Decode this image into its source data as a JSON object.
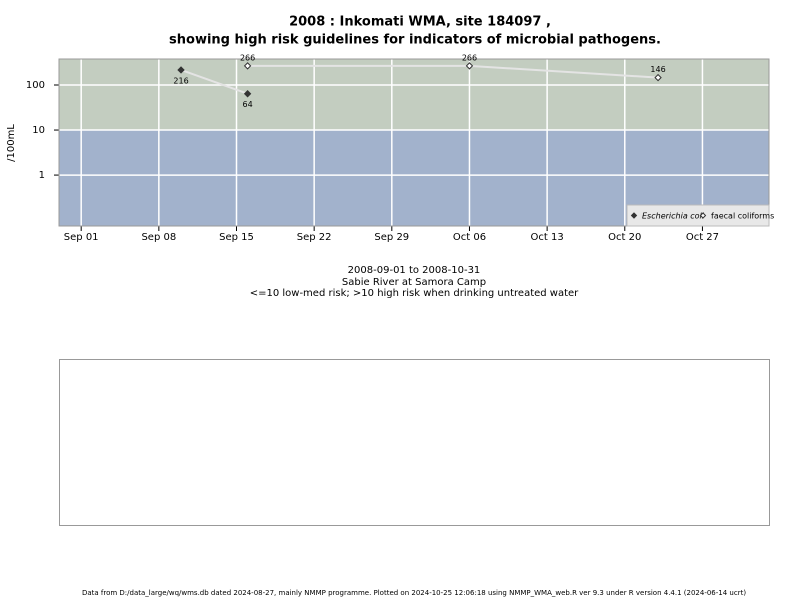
{
  "chart_data": {
    "type": "line",
    "title": "2008 : Inkomati WMA, site 184097 ,",
    "subtitle": "showing high risk guidelines for indicators of microbial pathogens.",
    "y_label": "/100mL",
    "x_caption": [
      "2008-09-01 to 2008-10-31",
      "Sabie River at Samora Camp",
      "<=10 low-med risk; >10 high risk when drinking untreated water"
    ],
    "footer": "Data from D:/data_large/wq/wms.db dated 2024-08-27, mainly NMMP programme. Plotted on 2024-10-25 12:06:18 using NMMP_WMA_web.R ver 9.3 under R version 4.4.1 (2024-06-14 ucrt)",
    "log_scale": true,
    "grid": true,
    "threshold": 10,
    "legend_position": "bottom-right",
    "xlim": [
      "2008-08-30",
      "2008-11-02"
    ],
    "xticks": [
      {
        "value": "2008-09-01",
        "label": "Sep 01"
      },
      {
        "value": "2008-09-08",
        "label": "Sep 08"
      },
      {
        "value": "2008-09-15",
        "label": "Sep 15"
      },
      {
        "value": "2008-09-22",
        "label": "Sep 22"
      },
      {
        "value": "2008-09-29",
        "label": "Sep 29"
      },
      {
        "value": "2008-10-06",
        "label": "Oct 06"
      },
      {
        "value": "2008-10-13",
        "label": "Oct 13"
      },
      {
        "value": "2008-10-20",
        "label": "Oct 20"
      },
      {
        "value": "2008-10-27",
        "label": "Oct 27"
      }
    ],
    "ylim": [
      0.074,
      378
    ],
    "yticks": [
      1,
      10,
      100
    ],
    "series": [
      {
        "name": "Escherichia coli",
        "color": "#333333",
        "x": [
          "2008-09-10",
          "2008-09-16"
        ],
        "values": [
          216,
          64
        ]
      },
      {
        "name": "faecal coliforms",
        "color": "#333333",
        "x": [
          "2008-09-16",
          "2008-10-06",
          "2008-10-23"
        ],
        "values": [
          266,
          266,
          146
        ]
      }
    ]
  }
}
